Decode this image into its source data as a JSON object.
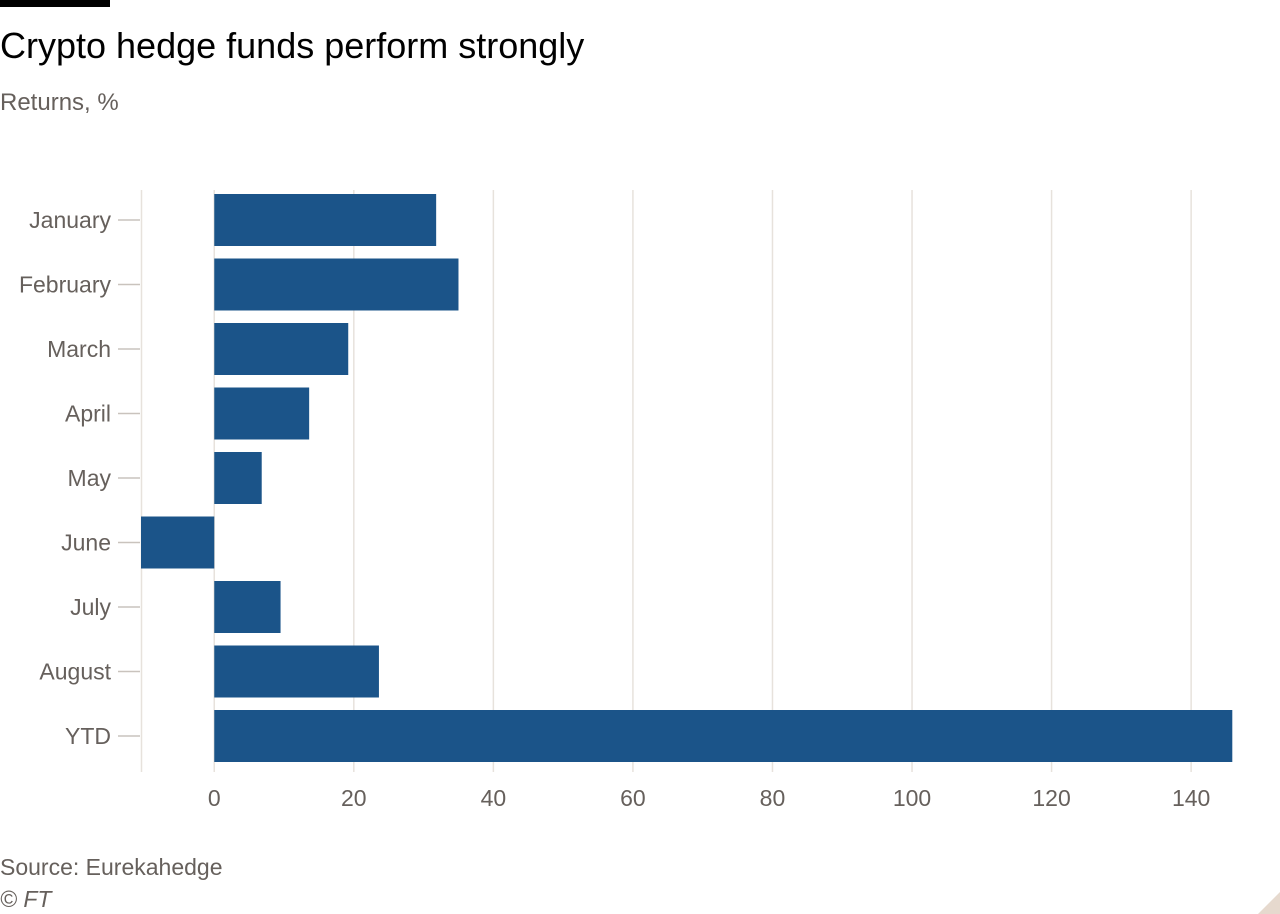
{
  "chart_data": {
    "type": "bar",
    "orientation": "horizontal",
    "title": "Crypto hedge funds perform strongly",
    "subtitle": "Returns, %",
    "categories": [
      "January",
      "February",
      "March",
      "April",
      "May",
      "June",
      "July",
      "August",
      "YTD"
    ],
    "values": [
      31.8,
      35.0,
      19.2,
      13.6,
      6.8,
      -10.5,
      9.5,
      23.6,
      145.9
    ],
    "xlabel": "",
    "ylabel": "",
    "xlim": [
      -10.5,
      146
    ],
    "xticks": [
      0,
      20,
      40,
      60,
      80,
      100,
      120,
      140
    ],
    "xtick_labels": [
      "0",
      "20",
      "40",
      "60",
      "80",
      "100",
      "120",
      "140"
    ],
    "grid": true,
    "bar_color": "#1b5489",
    "grid_color": "#e7e2dc",
    "source": "Source: Eurekahedge",
    "copyright": "© FT"
  }
}
